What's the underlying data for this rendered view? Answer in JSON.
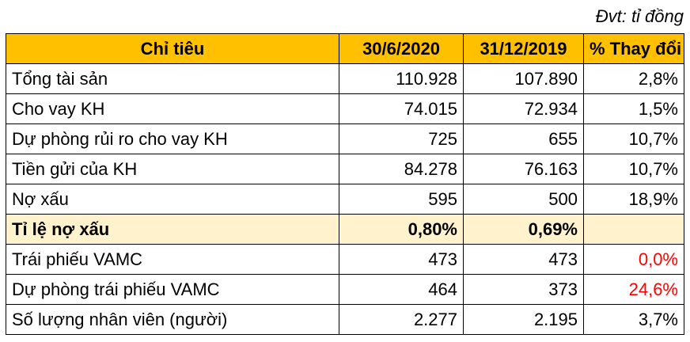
{
  "unit_note": "Đvt: tỉ đồng",
  "headers": [
    "Chỉ tiêu",
    "30/6/2020",
    "31/12/2019",
    "% Thay đổi"
  ],
  "rows": [
    {
      "label": "Tổng tài sản",
      "v2020": "110.928",
      "v2019": "107.890",
      "change": "2,8%"
    },
    {
      "label": "Cho vay KH",
      "v2020": "74.015",
      "v2019": "72.934",
      "change": "1,5%"
    },
    {
      "label": "Dự phòng rủi ro cho vay KH",
      "v2020": "725",
      "v2019": "655",
      "change": "10,7%"
    },
    {
      "label": "Tiền gửi của KH",
      "v2020": "84.278",
      "v2019": "76.163",
      "change": "10,7%"
    },
    {
      "label": "Nợ xấu",
      "v2020": "595",
      "v2019": "500",
      "change": "18,9%"
    },
    {
      "label": "Tỉ lệ nợ xấu",
      "v2020": "0,80%",
      "v2019": "0,69%",
      "change": ""
    },
    {
      "label": "Trái phiếu VAMC",
      "v2020": "473",
      "v2019": "473",
      "change": "0,0%"
    },
    {
      "label": "Dự phòng trái phiếu VAMC",
      "v2020": "464",
      "v2019": "373",
      "change": "24,6%"
    },
    {
      "label": "Số lượng nhân viên (người)",
      "v2020": "2.277",
      "v2019": "2.195",
      "change": "3,7%"
    }
  ],
  "colors": {
    "header_bg": "#ffc000",
    "highlight_bg": "#fff2cc",
    "negative_text": "#ff0000"
  }
}
